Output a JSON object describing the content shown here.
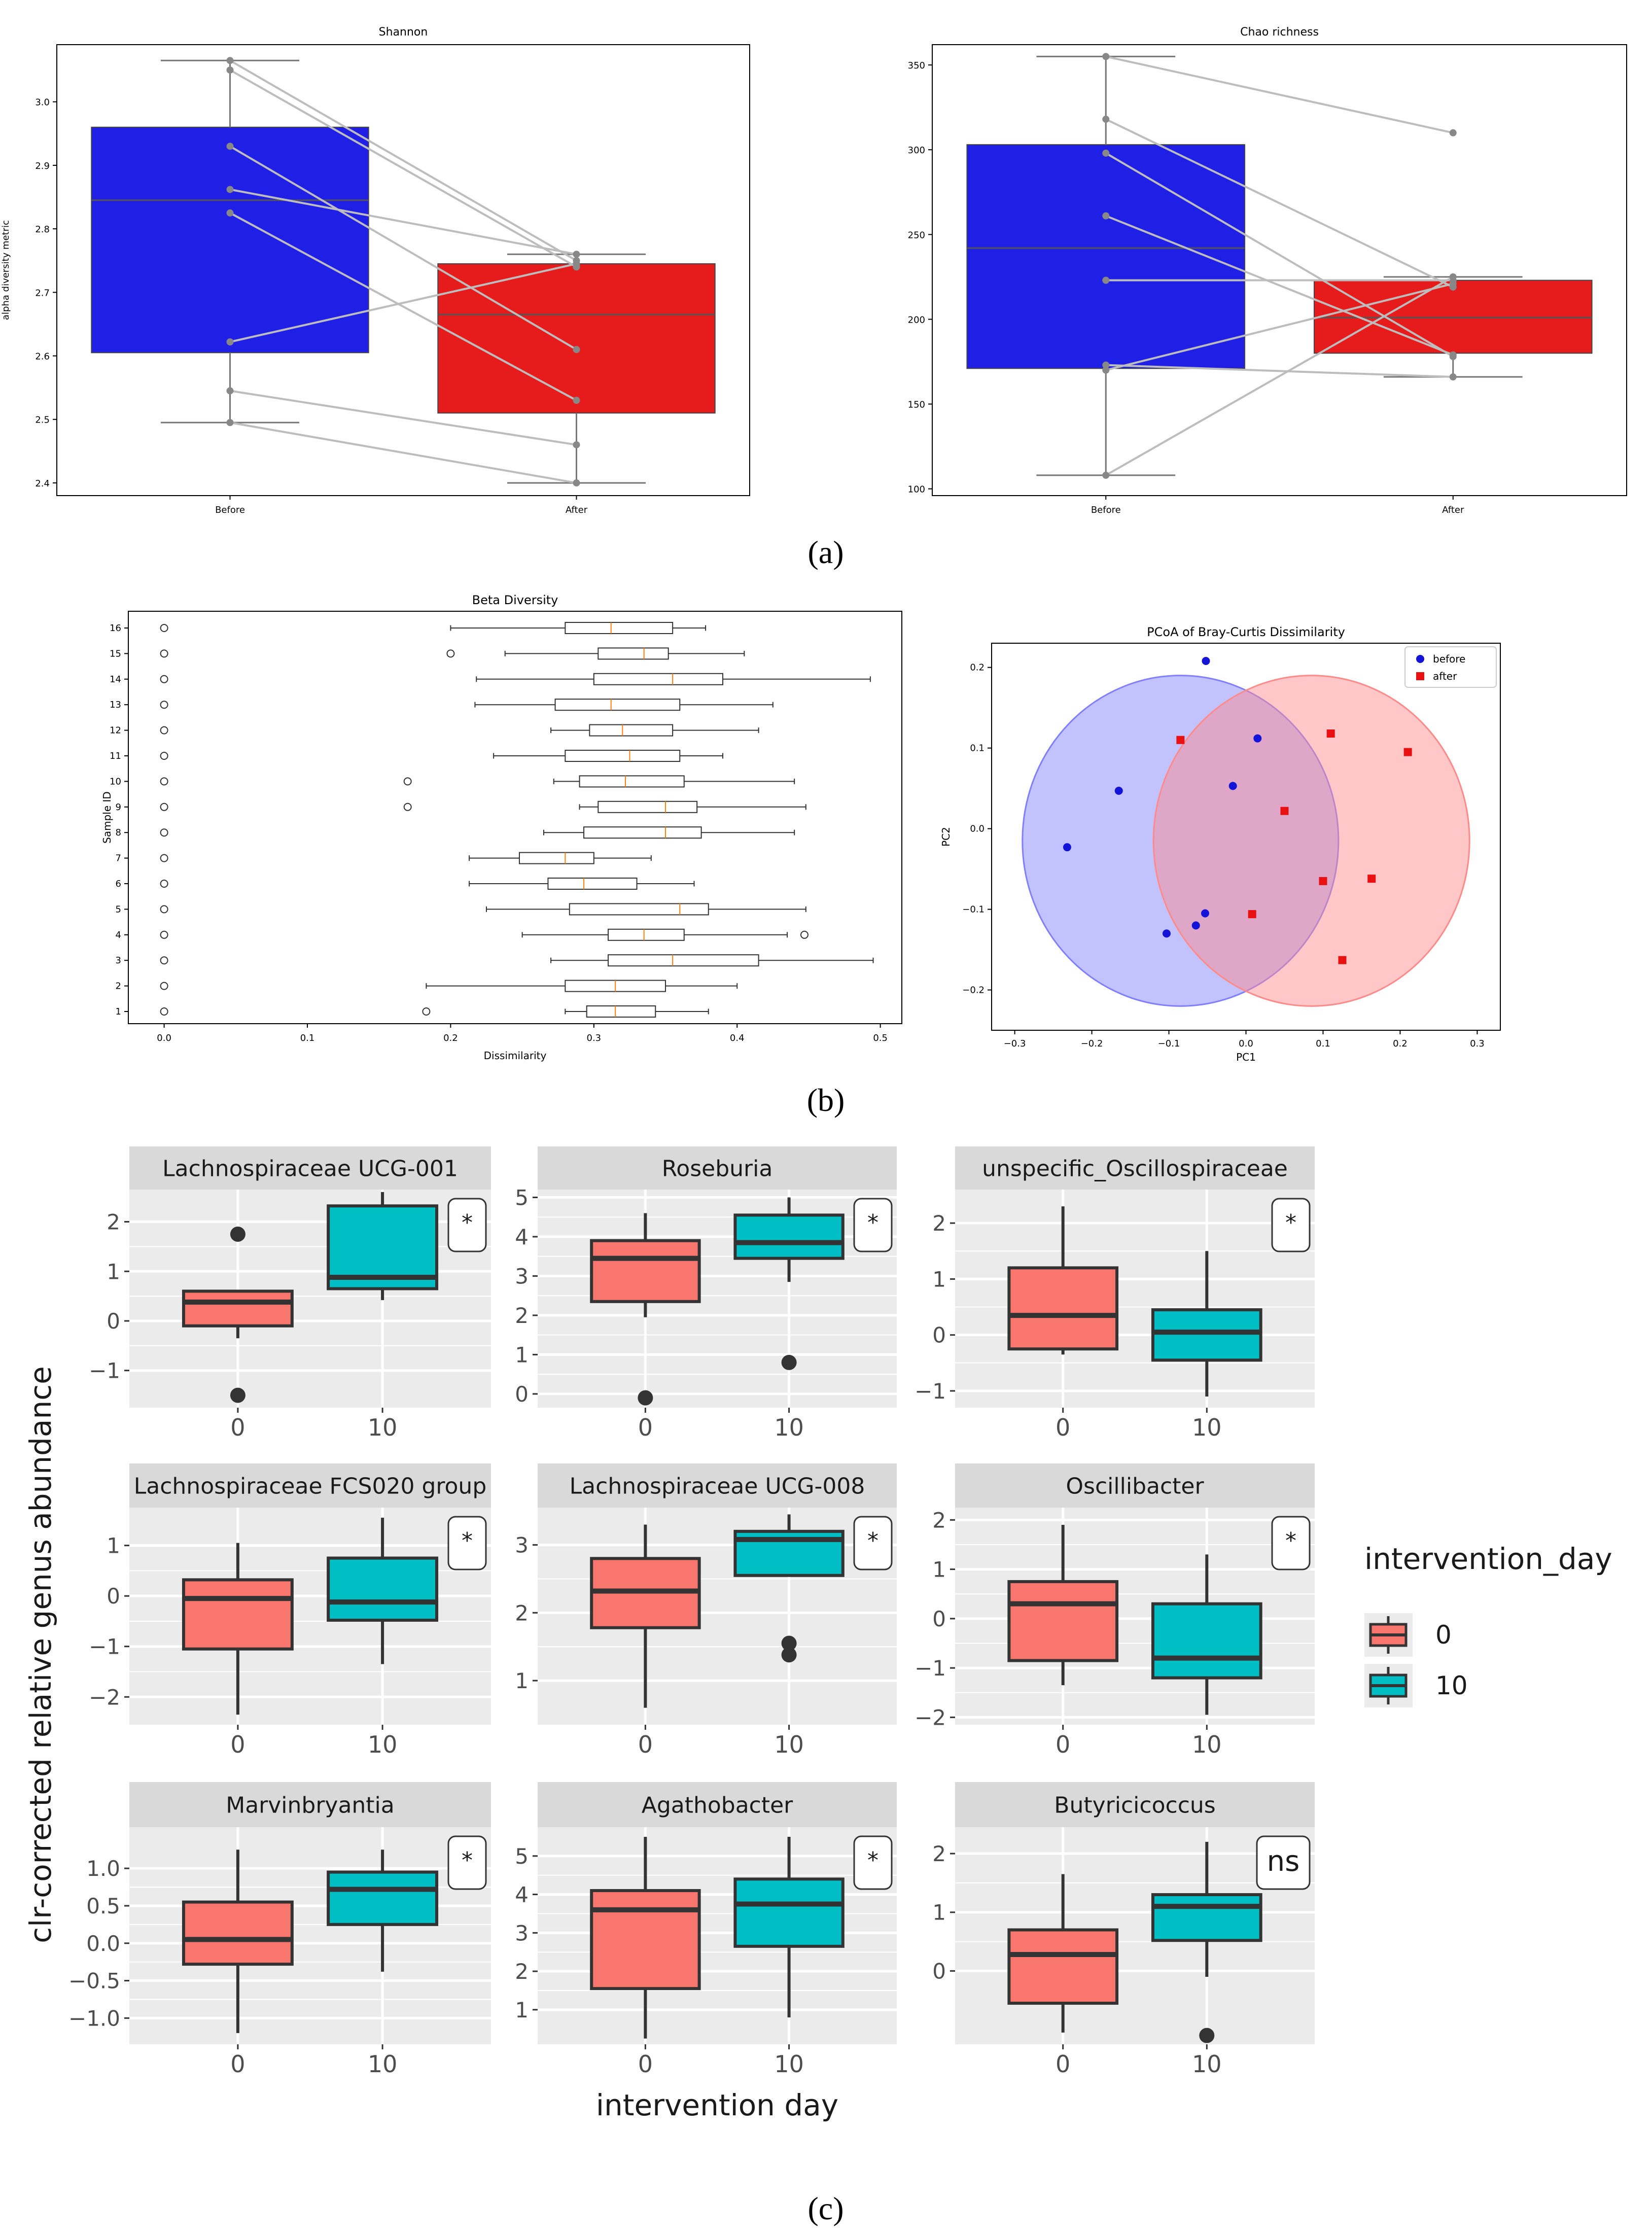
{
  "captions": {
    "a": "(a)",
    "b": "(b)",
    "c": "(c)"
  },
  "colors": {
    "before_blue": "#1f1fe6",
    "after_red": "#e61c1c",
    "ggplot_red": "#f8766d",
    "ggplot_teal": "#00bfc4",
    "strip_gray": "#d9d9d9",
    "panel_gray": "#ebebeb"
  },
  "chart_data": [
    {
      "type": "box",
      "title": "Shannon",
      "ylabel": "alpha diversity metric",
      "xlabel": "",
      "categories": [
        "Before",
        "After"
      ],
      "ylim": [
        2.38,
        3.09
      ],
      "yticks": [
        2.4,
        2.5,
        2.6,
        2.7,
        2.8,
        2.9,
        3.0
      ],
      "boxes": [
        {
          "q1": 2.605,
          "median": 2.845,
          "q3": 2.96,
          "whislo": 2.495,
          "whishi": 3.065,
          "color": "#1f1fe6"
        },
        {
          "q1": 2.51,
          "median": 2.665,
          "q3": 2.745,
          "whislo": 2.4,
          "whishi": 2.76,
          "color": "#e61c1c"
        }
      ],
      "pairs": [
        [
          3.065,
          2.75
        ],
        [
          3.05,
          2.74
        ],
        [
          2.93,
          2.61
        ],
        [
          2.862,
          2.76
        ],
        [
          2.825,
          2.53
        ],
        [
          2.622,
          2.745
        ],
        [
          2.545,
          2.46
        ],
        [
          2.495,
          2.4
        ]
      ]
    },
    {
      "type": "box",
      "title": "Chao richness",
      "ylabel": "",
      "xlabel": "",
      "categories": [
        "Before",
        "After"
      ],
      "ylim": [
        96,
        362
      ],
      "yticks": [
        100,
        150,
        200,
        250,
        300,
        350
      ],
      "boxes": [
        {
          "q1": 171,
          "median": 242,
          "q3": 303,
          "whislo": 108,
          "whishi": 355,
          "color": "#1f1fe6"
        },
        {
          "q1": 180,
          "median": 201,
          "q3": 223,
          "whislo": 166,
          "whishi": 225,
          "color": "#e61c1c"
        }
      ],
      "pairs": [
        [
          355,
          310
        ],
        [
          318,
          219
        ],
        [
          298,
          178
        ],
        [
          261,
          179
        ],
        [
          223,
          223
        ],
        [
          173,
          166
        ],
        [
          170,
          221
        ],
        [
          108,
          225
        ]
      ]
    },
    {
      "type": "boxh",
      "title": "Beta Diversity",
      "xlabel": "Dissimilarity",
      "ylabel": "Sample ID",
      "xlim": [
        -0.025,
        0.515
      ],
      "xticks": [
        0.0,
        0.1,
        0.2,
        0.3,
        0.4,
        0.5
      ],
      "categories": [
        "1",
        "2",
        "3",
        "4",
        "5",
        "6",
        "7",
        "8",
        "9",
        "10",
        "11",
        "12",
        "13",
        "14",
        "15",
        "16"
      ],
      "boxes": [
        {
          "id": "1",
          "q1": 0.295,
          "median": 0.315,
          "q3": 0.343,
          "whislo": 0.28,
          "whishi": 0.38,
          "fliers": [
            0.0,
            0.183
          ]
        },
        {
          "id": "2",
          "q1": 0.28,
          "median": 0.315,
          "q3": 0.35,
          "whislo": 0.183,
          "whishi": 0.4,
          "fliers": [
            0.0
          ]
        },
        {
          "id": "3",
          "q1": 0.31,
          "median": 0.355,
          "q3": 0.415,
          "whislo": 0.27,
          "whishi": 0.495,
          "fliers": [
            0.0
          ]
        },
        {
          "id": "4",
          "q1": 0.31,
          "median": 0.335,
          "q3": 0.363,
          "whislo": 0.25,
          "whishi": 0.435,
          "fliers": [
            0.0,
            0.447
          ]
        },
        {
          "id": "5",
          "q1": 0.283,
          "median": 0.36,
          "q3": 0.38,
          "whislo": 0.225,
          "whishi": 0.448,
          "fliers": [
            0.0
          ]
        },
        {
          "id": "6",
          "q1": 0.268,
          "median": 0.293,
          "q3": 0.33,
          "whislo": 0.213,
          "whishi": 0.37,
          "fliers": [
            0.0
          ]
        },
        {
          "id": "7",
          "q1": 0.248,
          "median": 0.28,
          "q3": 0.3,
          "whislo": 0.213,
          "whishi": 0.34,
          "fliers": [
            0.0
          ]
        },
        {
          "id": "8",
          "q1": 0.293,
          "median": 0.35,
          "q3": 0.375,
          "whislo": 0.265,
          "whishi": 0.44,
          "fliers": [
            0.0
          ]
        },
        {
          "id": "9",
          "q1": 0.303,
          "median": 0.35,
          "q3": 0.372,
          "whislo": 0.29,
          "whishi": 0.448,
          "fliers": [
            0.0,
            0.17
          ]
        },
        {
          "id": "10",
          "q1": 0.29,
          "median": 0.322,
          "q3": 0.363,
          "whislo": 0.272,
          "whishi": 0.44,
          "fliers": [
            0.0,
            0.17
          ]
        },
        {
          "id": "11",
          "q1": 0.28,
          "median": 0.325,
          "q3": 0.36,
          "whislo": 0.23,
          "whishi": 0.39,
          "fliers": [
            0.0
          ]
        },
        {
          "id": "12",
          "q1": 0.297,
          "median": 0.32,
          "q3": 0.355,
          "whislo": 0.27,
          "whishi": 0.415,
          "fliers": [
            0.0
          ]
        },
        {
          "id": "13",
          "q1": 0.273,
          "median": 0.312,
          "q3": 0.36,
          "whislo": 0.217,
          "whishi": 0.425,
          "fliers": [
            0.0
          ]
        },
        {
          "id": "14",
          "q1": 0.3,
          "median": 0.355,
          "q3": 0.39,
          "whislo": 0.218,
          "whishi": 0.493,
          "fliers": [
            0.0
          ]
        },
        {
          "id": "15",
          "q1": 0.303,
          "median": 0.335,
          "q3": 0.352,
          "whislo": 0.238,
          "whishi": 0.405,
          "fliers": [
            0.0,
            0.2
          ]
        },
        {
          "id": "16",
          "q1": 0.28,
          "median": 0.312,
          "q3": 0.355,
          "whislo": 0.2,
          "whishi": 0.378,
          "fliers": [
            0.0
          ]
        }
      ]
    },
    {
      "type": "scatter",
      "title": "PCoA of Bray-Curtis Dissimilarity",
      "xlabel": "PC1",
      "ylabel": "PC2",
      "xlim": [
        -0.33,
        0.33
      ],
      "ylim": [
        -0.25,
        0.23
      ],
      "xticks": [
        -0.3,
        -0.2,
        -0.1,
        0.0,
        0.1,
        0.2,
        0.3
      ],
      "yticks": [
        -0.2,
        -0.1,
        0.0,
        0.1,
        0.2
      ],
      "legend": {
        "position": "top-right",
        "entries": [
          "before",
          "after"
        ]
      },
      "circles": [
        {
          "group": "before",
          "cx": -0.085,
          "cy": -0.015,
          "r": 0.205,
          "color": "#8080ff"
        },
        {
          "group": "after",
          "cx": 0.085,
          "cy": -0.015,
          "r": 0.205,
          "color": "#ff8a8a"
        }
      ],
      "series": [
        {
          "name": "before",
          "color": "#1414d8",
          "marker": "circle",
          "points": [
            [
              -0.052,
              0.208
            ],
            [
              0.015,
              0.112
            ],
            [
              -0.017,
              0.053
            ],
            [
              -0.165,
              0.047
            ],
            [
              -0.232,
              -0.023
            ],
            [
              -0.053,
              -0.105
            ],
            [
              -0.065,
              -0.12
            ],
            [
              -0.103,
              -0.13
            ]
          ]
        },
        {
          "name": "after",
          "color": "#e81010",
          "marker": "square",
          "points": [
            [
              -0.085,
              0.11
            ],
            [
              0.11,
              0.118
            ],
            [
              0.21,
              0.095
            ],
            [
              0.05,
              0.022
            ],
            [
              0.1,
              -0.065
            ],
            [
              0.163,
              -0.062
            ],
            [
              0.008,
              -0.106
            ],
            [
              0.125,
              -0.163
            ]
          ]
        }
      ]
    },
    {
      "type": "faceted_box",
      "xlabel": "intervention day",
      "ylabel": "clr-corrected relative genus abundance",
      "categories": [
        "0",
        "10"
      ],
      "legend": {
        "title": "intervention_day",
        "entries": [
          "0",
          "10"
        ]
      },
      "facets": [
        {
          "title": "Lachnospiraceae UCG-001",
          "sig": "*",
          "ylim": [
            -1.75,
            2.65
          ],
          "yticks": [
            -1,
            0,
            1,
            2
          ],
          "boxes": [
            {
              "q1": -0.1,
              "median": 0.38,
              "q3": 0.6,
              "whislo": -0.35,
              "whishi": 0.6,
              "outliers": [
                1.75,
                -1.5
              ]
            },
            {
              "q1": 0.65,
              "median": 0.88,
              "q3": 2.32,
              "whislo": 0.42,
              "whishi": 2.6,
              "outliers": []
            }
          ]
        },
        {
          "title": "Roseburia",
          "sig": "*",
          "ylim": [
            -0.35,
            5.2
          ],
          "yticks": [
            0,
            1,
            2,
            3,
            4,
            5
          ],
          "boxes": [
            {
              "q1": 2.35,
              "median": 3.45,
              "q3": 3.9,
              "whislo": 1.95,
              "whishi": 4.6,
              "outliers": [
                -0.1
              ]
            },
            {
              "q1": 3.45,
              "median": 3.85,
              "q3": 4.55,
              "whislo": 2.85,
              "whishi": 5.0,
              "outliers": [
                0.8
              ]
            }
          ]
        },
        {
          "title": "unspecific_Oscillospiraceae",
          "sig": "*",
          "ylim": [
            -1.3,
            2.6
          ],
          "yticks": [
            -1,
            0,
            1,
            2
          ],
          "boxes": [
            {
              "q1": -0.25,
              "median": 0.35,
              "q3": 1.2,
              "whislo": -0.35,
              "whishi": 2.3,
              "outliers": []
            },
            {
              "q1": -0.45,
              "median": 0.05,
              "q3": 0.45,
              "whislo": -1.1,
              "whishi": 1.5,
              "outliers": []
            }
          ]
        },
        {
          "title": "Lachnospiraceae FCS020 group",
          "sig": "*",
          "ylim": [
            -2.55,
            1.75
          ],
          "yticks": [
            -2,
            -1,
            0,
            1
          ],
          "boxes": [
            {
              "q1": -1.05,
              "median": -0.05,
              "q3": 0.32,
              "whislo": -2.35,
              "whishi": 1.05,
              "outliers": []
            },
            {
              "q1": -0.48,
              "median": -0.12,
              "q3": 0.75,
              "whislo": -1.35,
              "whishi": 1.55,
              "outliers": []
            }
          ]
        },
        {
          "title": "Lachnospiraceae UCG-008",
          "sig": "*",
          "ylim": [
            0.35,
            3.55
          ],
          "yticks": [
            1,
            2,
            3
          ],
          "boxes": [
            {
              "q1": 1.78,
              "median": 2.32,
              "q3": 2.8,
              "whislo": 0.6,
              "whishi": 3.3,
              "outliers": []
            },
            {
              "q1": 2.55,
              "median": 3.08,
              "q3": 3.2,
              "whislo": 2.55,
              "whishi": 3.45,
              "outliers": [
                1.55,
                1.38
              ]
            }
          ]
        },
        {
          "title": "Oscillibacter",
          "sig": "*",
          "ylim": [
            -2.15,
            2.25
          ],
          "yticks": [
            -2,
            -1,
            0,
            1,
            2
          ],
          "boxes": [
            {
              "q1": -0.85,
              "median": 0.3,
              "q3": 0.75,
              "whislo": -1.35,
              "whishi": 1.9,
              "outliers": []
            },
            {
              "q1": -1.2,
              "median": -0.8,
              "q3": 0.3,
              "whislo": -1.95,
              "whishi": 1.3,
              "outliers": []
            }
          ]
        },
        {
          "title": "Marvinbryantia",
          "sig": "*",
          "ylim": [
            -1.35,
            1.55
          ],
          "yticks": [
            -1.0,
            -0.5,
            0.0,
            0.5,
            1.0
          ],
          "boxes": [
            {
              "q1": -0.28,
              "median": 0.05,
              "q3": 0.55,
              "whislo": -1.2,
              "whishi": 1.25,
              "outliers": []
            },
            {
              "q1": 0.25,
              "median": 0.72,
              "q3": 0.95,
              "whislo": -0.38,
              "whishi": 1.25,
              "outliers": []
            }
          ]
        },
        {
          "title": "Agathobacter",
          "sig": "*",
          "ylim": [
            0.1,
            5.75
          ],
          "yticks": [
            1,
            2,
            3,
            4,
            5
          ],
          "boxes": [
            {
              "q1": 1.55,
              "median": 3.6,
              "q3": 4.1,
              "whislo": 0.25,
              "whishi": 5.5,
              "outliers": []
            },
            {
              "q1": 2.65,
              "median": 3.75,
              "q3": 4.4,
              "whislo": 0.8,
              "whishi": 5.5,
              "outliers": []
            }
          ]
        },
        {
          "title": "Butyricicoccus",
          "sig": "ns",
          "ylim": [
            -1.25,
            2.45
          ],
          "yticks": [
            0,
            1,
            2
          ],
          "boxes": [
            {
              "q1": -0.55,
              "median": 0.28,
              "q3": 0.7,
              "whislo": -1.05,
              "whishi": 1.65,
              "outliers": []
            },
            {
              "q1": 0.52,
              "median": 1.1,
              "q3": 1.3,
              "whislo": -0.1,
              "whishi": 2.2,
              "outliers": [
                -1.1
              ]
            }
          ]
        }
      ]
    }
  ]
}
